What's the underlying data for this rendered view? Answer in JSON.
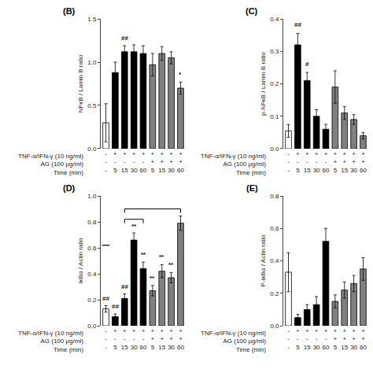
{
  "chart_data": [
    {
      "type": "bar",
      "title": "(B)",
      "ylabel": "NFκB / Lamin B ratio",
      "xlabel": "TNF-α/IFN-γ (10 ng/ml)\nAG (100 μg/ml)\nTime (min)",
      "categories": [
        "-\n-\n-",
        "+\n-\n5",
        "+\n-\n15",
        "+\n-\n30",
        "+\n-\n60",
        "+\n+\n5",
        "+\n+\n15",
        "+\n+\n30",
        "+\n+\n60"
      ],
      "values": [
        0.3,
        0.88,
        1.12,
        1.12,
        1.1,
        0.97,
        1.1,
        1.05,
        0.7
      ],
      "errors": [
        0.22,
        0.12,
        0.07,
        0.08,
        0.09,
        0.13,
        0.08,
        0.07,
        0.07
      ],
      "colors": [
        "white",
        "black",
        "black",
        "black",
        "black",
        "gray",
        "gray",
        "gray",
        "gray"
      ],
      "ylim": [
        0.0,
        1.5
      ],
      "yticks": [
        {
          "value": 0,
          "label": "0.0"
        },
        0.5,
        {
          "value": 1,
          "label": "1.0"
        },
        1.5
      ],
      "grid": false,
      "annotations": [
        {
          "text": "##",
          "bar": 2,
          "y": 1.22
        },
        {
          "text": "*",
          "bar": 8,
          "y": 0.8
        }
      ]
    },
    {
      "type": "bar",
      "title": "(C)",
      "ylabel": "p-NFκB / Lamin B ratio",
      "xlabel": "TNF-α/IFN-γ (10 ng/ml)\nAG (100 μg/ml)\nTime (min)",
      "categories": [
        "-\n-\n-",
        "+\n-\n5",
        "+\n-\n15",
        "+\n-\n30",
        "+\n-\n60",
        "+\n+\n5",
        "+\n+\n15",
        "+\n+\n30",
        "+\n+\n60"
      ],
      "values": [
        0.055,
        0.32,
        0.21,
        0.1,
        0.06,
        0.19,
        0.11,
        0.09,
        0.04
      ],
      "errors": [
        0.02,
        0.035,
        0.025,
        0.02,
        0.015,
        0.05,
        0.02,
        0.015,
        0.01
      ],
      "colors": [
        "white",
        "black",
        "black",
        "black",
        "black",
        "gray",
        "gray",
        "gray",
        "gray"
      ],
      "ylim": [
        0.0,
        0.4
      ],
      "yticks": [
        {
          "value": 0,
          "label": "0.0"
        },
        0.1,
        0.2,
        0.3,
        0.4
      ],
      "grid": false,
      "annotations": [
        {
          "text": "##",
          "bar": 1,
          "y": 0.365
        },
        {
          "text": "#",
          "bar": 2,
          "y": 0.245
        }
      ]
    },
    {
      "type": "bar",
      "title": "(D)",
      "ylabel": "IκBα / Actin ratio",
      "xlabel": "TNF-α/IFN-γ (10 ng/ml)\nAG (100 μg/ml)\nTime (min)",
      "categories": [
        "-\n-\n-",
        "+\n-\n5",
        "+\n-\n15",
        "+\n-\n30",
        "+\n-\n60",
        "+\n+\n5",
        "+\n+\n15",
        "+\n+\n30",
        "+\n+\n60"
      ],
      "values": [
        0.13,
        0.07,
        0.21,
        0.66,
        0.44,
        0.27,
        0.42,
        0.37,
        0.79
      ],
      "errors": [
        0.025,
        0.02,
        0.035,
        0.055,
        0.05,
        0.04,
        0.05,
        0.04,
        0.055
      ],
      "colors": [
        "white",
        "black",
        "black",
        "black",
        "black",
        "gray",
        "gray",
        "gray",
        "gray"
      ],
      "ylim": [
        0.0,
        1.0
      ],
      "yticks": [
        {
          "value": 0,
          "label": "0.0"
        },
        0.2,
        0.4,
        0.6,
        0.8,
        {
          "value": 1,
          "label": "1.0"
        }
      ],
      "grid": false,
      "annotations": [
        {
          "text": "##",
          "bar": 0,
          "y": 0.17
        },
        {
          "text": "##",
          "bar": 1,
          "y": 0.11
        },
        {
          "text": "##",
          "bar": 2,
          "y": 0.26
        },
        {
          "text": "**",
          "bar": 3,
          "y": 0.73
        },
        {
          "text": "**",
          "bar": 4,
          "y": 0.51
        },
        {
          "text": "**",
          "bar": 5,
          "y": 0.33
        },
        {
          "text": "**",
          "bar": 6,
          "y": 0.49
        },
        {
          "text": "**",
          "bar": 7,
          "y": 0.43
        }
      ],
      "brackets": [
        {
          "from": 2,
          "to": 8,
          "y": 0.9
        },
        {
          "from": 2,
          "to": 4,
          "y": 0.82
        }
      ],
      "lines": [
        {
          "bar": 0,
          "y": 0.62
        }
      ]
    },
    {
      "type": "bar",
      "title": "(E)",
      "ylabel": "P-IκBα / Actin ratio",
      "xlabel": "TNF-α/IFN-γ (10 ng/ml)\nAG (100 μg/ml)\nTime (min)",
      "categories": [
        "-\n-\n-",
        "+\n-\n5",
        "+\n-\n15",
        "+\n-\n30",
        "+\n-\n60",
        "+\n+\n5",
        "+\n+\n15",
        "+\n+\n30",
        "+\n+\n60"
      ],
      "values": [
        0.33,
        0.05,
        0.1,
        0.13,
        0.52,
        0.15,
        0.22,
        0.26,
        0.35
      ],
      "errors": [
        0.12,
        0.02,
        0.03,
        0.05,
        0.08,
        0.04,
        0.05,
        0.05,
        0.07
      ],
      "colors": [
        "white",
        "black",
        "black",
        "black",
        "black",
        "gray",
        "gray",
        "gray",
        "gray"
      ],
      "ylim": [
        0.0,
        0.8
      ],
      "yticks": [
        {
          "value": 0,
          "label": "0.0"
        },
        0.2,
        0.4,
        0.6,
        0.8
      ],
      "grid": false,
      "annotations": []
    }
  ]
}
